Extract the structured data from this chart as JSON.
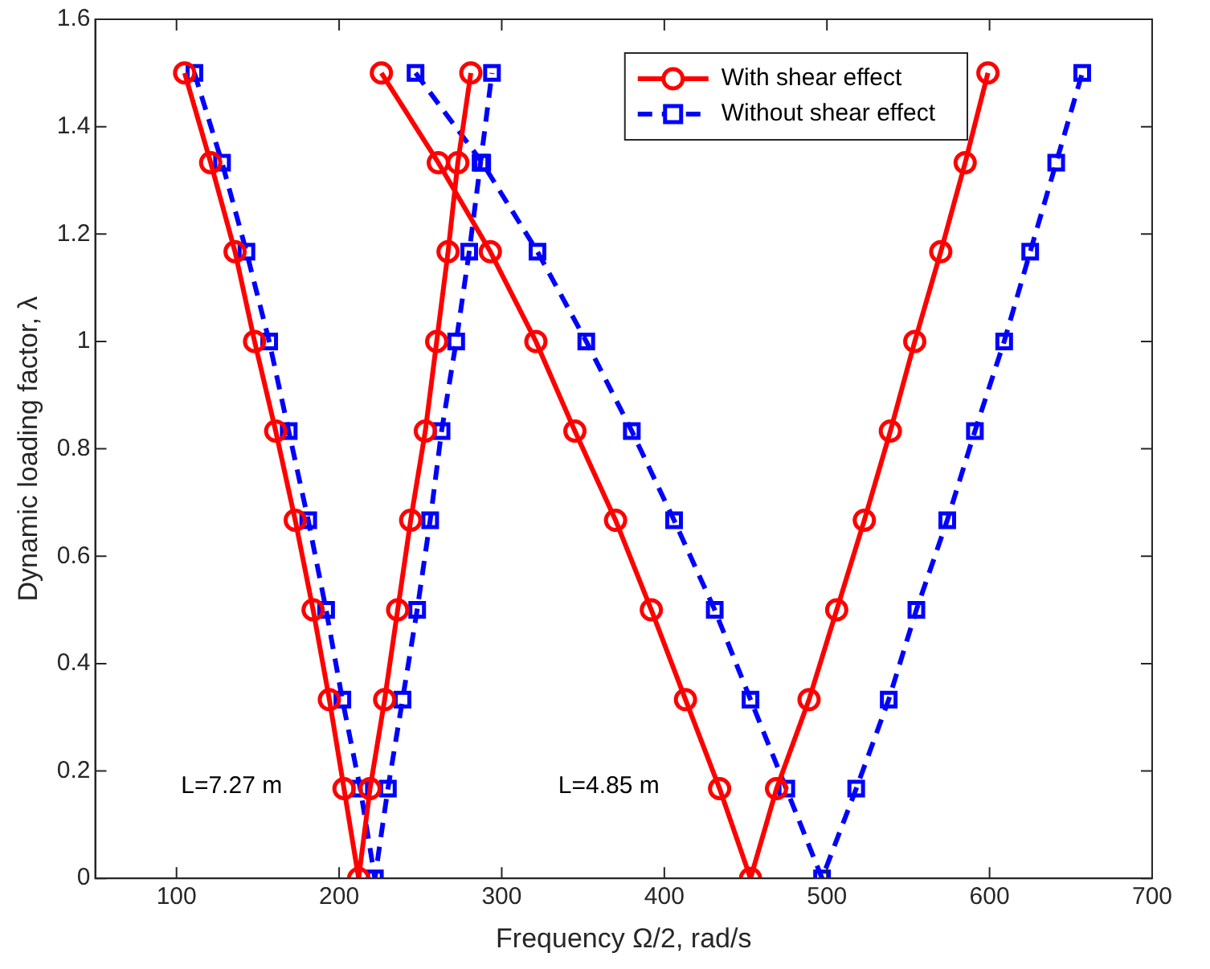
{
  "chart_data": {
    "type": "line",
    "xlabel": "Frequency Ω/2, rad/s",
    "ylabel": "Dynamic loading factor, λ",
    "xlim": [
      50,
      700
    ],
    "xticks": [
      100,
      200,
      300,
      400,
      500,
      600,
      700
    ],
    "ylim": [
      0,
      1.6
    ],
    "yticks": [
      0,
      0.2,
      0.4,
      0.6,
      0.8,
      1,
      1.2,
      1.4,
      1.6
    ],
    "grid": false,
    "legend": "top right",
    "annotations": [
      "L=7.27 m",
      "L=4.85 m"
    ],
    "series": [
      {
        "name": "With shear effect",
        "color": "#ff0000",
        "marker": "circle",
        "line_style": "solid",
        "x": [
          105,
          121,
          136,
          148,
          161,
          173,
          184,
          194,
          203,
          212,
          219,
          228,
          236,
          244,
          253,
          260,
          267,
          273,
          281,
          null,
          226,
          261,
          293,
          321,
          345,
          370,
          392,
          413,
          434,
          453,
          469,
          489,
          506,
          523,
          539,
          554,
          570,
          585,
          599
        ],
        "values": [
          1.5,
          1.333,
          1.167,
          1,
          0.833,
          0.667,
          0.5,
          0.333,
          0.167,
          0,
          0.167,
          0.333,
          0.5,
          0.667,
          0.833,
          1,
          1.167,
          1.333,
          1.5,
          null,
          1.5,
          1.333,
          1.167,
          1,
          0.833,
          0.667,
          0.5,
          0.333,
          0.167,
          0,
          0.167,
          0.333,
          0.5,
          0.667,
          0.833,
          1,
          1.167,
          1.333,
          1.5
        ]
      },
      {
        "name": "Without shear effect",
        "color": "#0000ff",
        "marker": "square",
        "line_style": "dashed",
        "x": [
          111,
          128,
          143,
          157,
          169,
          181,
          192,
          202,
          213,
          222,
          230,
          239,
          248,
          256,
          263,
          272,
          280,
          287,
          294,
          null,
          247,
          288,
          322,
          352,
          380,
          406,
          431,
          453,
          475,
          497,
          518,
          538,
          555,
          574,
          591,
          609,
          625,
          641,
          657
        ],
        "values": [
          1.5,
          1.333,
          1.167,
          1,
          0.833,
          0.667,
          0.5,
          0.333,
          0.167,
          0,
          0.167,
          0.333,
          0.5,
          0.667,
          0.833,
          1,
          1.167,
          1.333,
          1.5,
          null,
          1.5,
          1.333,
          1.167,
          1,
          0.833,
          0.667,
          0.5,
          0.333,
          0.167,
          0,
          0.167,
          0.333,
          0.5,
          0.667,
          0.833,
          1,
          1.167,
          1.333,
          1.5
        ]
      }
    ]
  }
}
